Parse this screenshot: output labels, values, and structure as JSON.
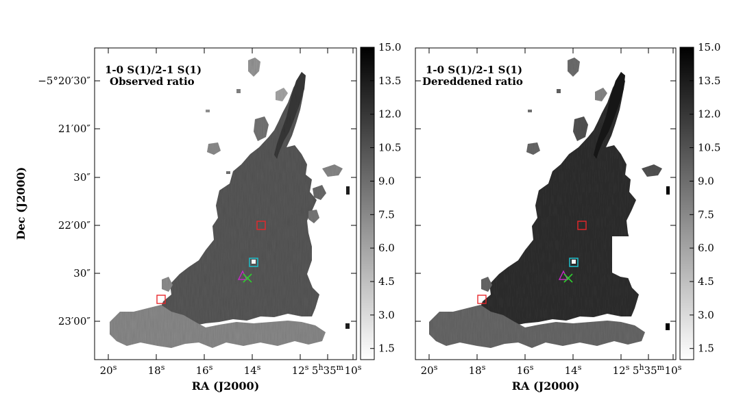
{
  "y_axis_label": "Dec (J2000)",
  "y_ticks": [
    "−5°20′30″",
    "21′00″",
    "30″",
    "22′00″",
    "30″",
    "23′00″"
  ],
  "x_ticks": [
    {
      "main": "20",
      "sup": "s"
    },
    {
      "main": "18",
      "sup": "s"
    },
    {
      "main": "16",
      "sup": "s"
    },
    {
      "main": "14",
      "sup": "s"
    },
    {
      "main": "12",
      "sup": "s"
    },
    {
      "main": "5",
      "sup": "h",
      "main2": "35",
      "sup2": "m"
    },
    {
      "main": "10",
      "sup": "s"
    }
  ],
  "colorbar_ticks": [
    "15.0",
    "13.5",
    "12.0",
    "10.5",
    "9.0",
    "7.5",
    "6.0",
    "4.5",
    "3.0",
    "1.5"
  ],
  "chart_data": [
    {
      "type": "heatmap",
      "title_line1": "1-0 S(1)/2-1 S(1)",
      "title_line2": "Observed ratio",
      "xlabel": "RA (J2000)",
      "ylabel": "Dec (J2000)",
      "colorbar_range": [
        1.0,
        15.0
      ],
      "colormap": "gray_r (white = low, black = high)",
      "markers": [
        {
          "shape": "square",
          "color": "#e8272b",
          "ra_s": 13.8,
          "dec": "-5:21:58"
        },
        {
          "shape": "square",
          "color": "#e8272b",
          "ra_s": 17.9,
          "dec": "-5:22:43"
        },
        {
          "shape": "square",
          "color": "#1fb7c3",
          "ra_s": 14.1,
          "dec": "-5:22:20"
        },
        {
          "shape": "triangle",
          "color": "#c42ac4",
          "ra_s": 14.5,
          "dec": "-5:22:30"
        },
        {
          "shape": "x",
          "color": "#2fcf2f",
          "ra_s": 14.3,
          "dec": "-5:22:31"
        }
      ]
    },
    {
      "type": "heatmap",
      "title_line1": "1-0 S(1)/2-1 S(1)",
      "title_line2": "Dereddened ratio",
      "xlabel": "RA (J2000)",
      "ylabel": "",
      "colorbar_range": [
        1.0,
        15.0
      ],
      "colormap": "gray_r (white = low, black = high)",
      "markers": [
        {
          "shape": "square",
          "color": "#e8272b",
          "ra_s": 13.8,
          "dec": "-5:21:58"
        },
        {
          "shape": "square",
          "color": "#e8272b",
          "ra_s": 17.9,
          "dec": "-5:22:43"
        },
        {
          "shape": "square",
          "color": "#1fb7c3",
          "ra_s": 14.1,
          "dec": "-5:22:20"
        },
        {
          "shape": "triangle",
          "color": "#c42ac4",
          "ra_s": 14.5,
          "dec": "-5:22:30"
        },
        {
          "shape": "x",
          "color": "#2fcf2f",
          "ra_s": 14.3,
          "dec": "-5:22:31"
        }
      ]
    }
  ]
}
